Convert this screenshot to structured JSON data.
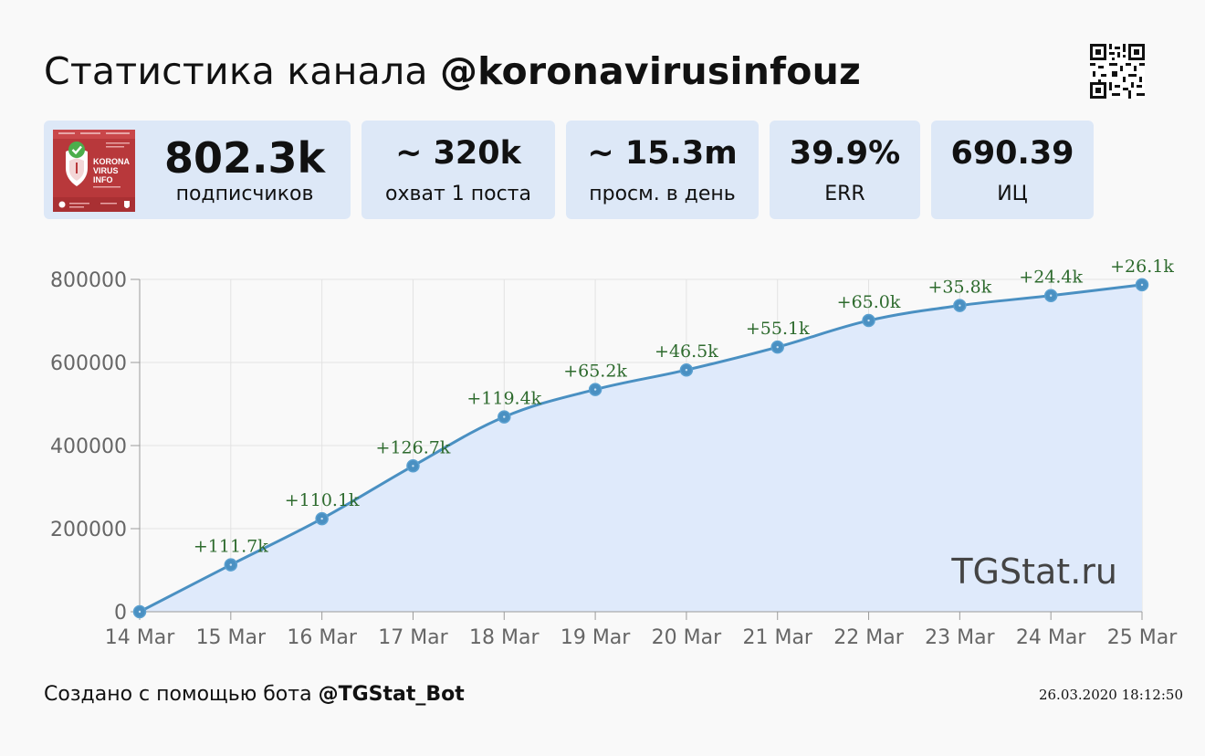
{
  "header": {
    "title_prefix": "Статистика канала ",
    "channel_handle": "@koronavirusinfouz"
  },
  "stats": {
    "subscribers": {
      "value": "802.3k",
      "label": "подписчиков"
    },
    "reach": {
      "value": "~ 320k",
      "label": "охват 1 поста"
    },
    "daily_views": {
      "value": "~ 15.3m",
      "label": "просм. в день"
    },
    "err": {
      "value": "39.9%",
      "label": "ERR"
    },
    "citation_index": {
      "value": "690.39",
      "label": "ИЦ"
    }
  },
  "avatar": {
    "lines": [
      "KORONA",
      "VIRUS",
      "INFO"
    ]
  },
  "chart_data": {
    "type": "line",
    "categories": [
      "14 Mar",
      "15 Mar",
      "16 Mar",
      "17 Mar",
      "18 Mar",
      "19 Mar",
      "20 Mar",
      "21 Mar",
      "22 Mar",
      "23 Mar",
      "24 Mar",
      "25 Mar"
    ],
    "values": [
      0,
      113000,
      224000,
      351000,
      469000,
      535000,
      582000,
      637000,
      701000,
      737000,
      761000,
      787000
    ],
    "data_labels": [
      "",
      "+111.7k",
      "+110.1k",
      "+126.7k",
      "+119.4k",
      "+65.2k",
      "+46.5k",
      "+55.1k",
      "+65.0k",
      "+35.8k",
      "+24.4k",
      "+26.1k"
    ],
    "yticks": [
      0,
      200000,
      400000,
      600000,
      800000
    ],
    "ylim": [
      0,
      800000
    ],
    "grid": true,
    "fill": true,
    "line_color": "#4a90c2",
    "fill_color": "#dfeafb",
    "label_color": "#2e6b2e",
    "watermark": "TGStat.ru"
  },
  "footer": {
    "created_prefix": "Создано с помощью бота ",
    "bot_handle": "@TGStat_Bot",
    "timestamp": "26.03.2020 18:12:50"
  }
}
